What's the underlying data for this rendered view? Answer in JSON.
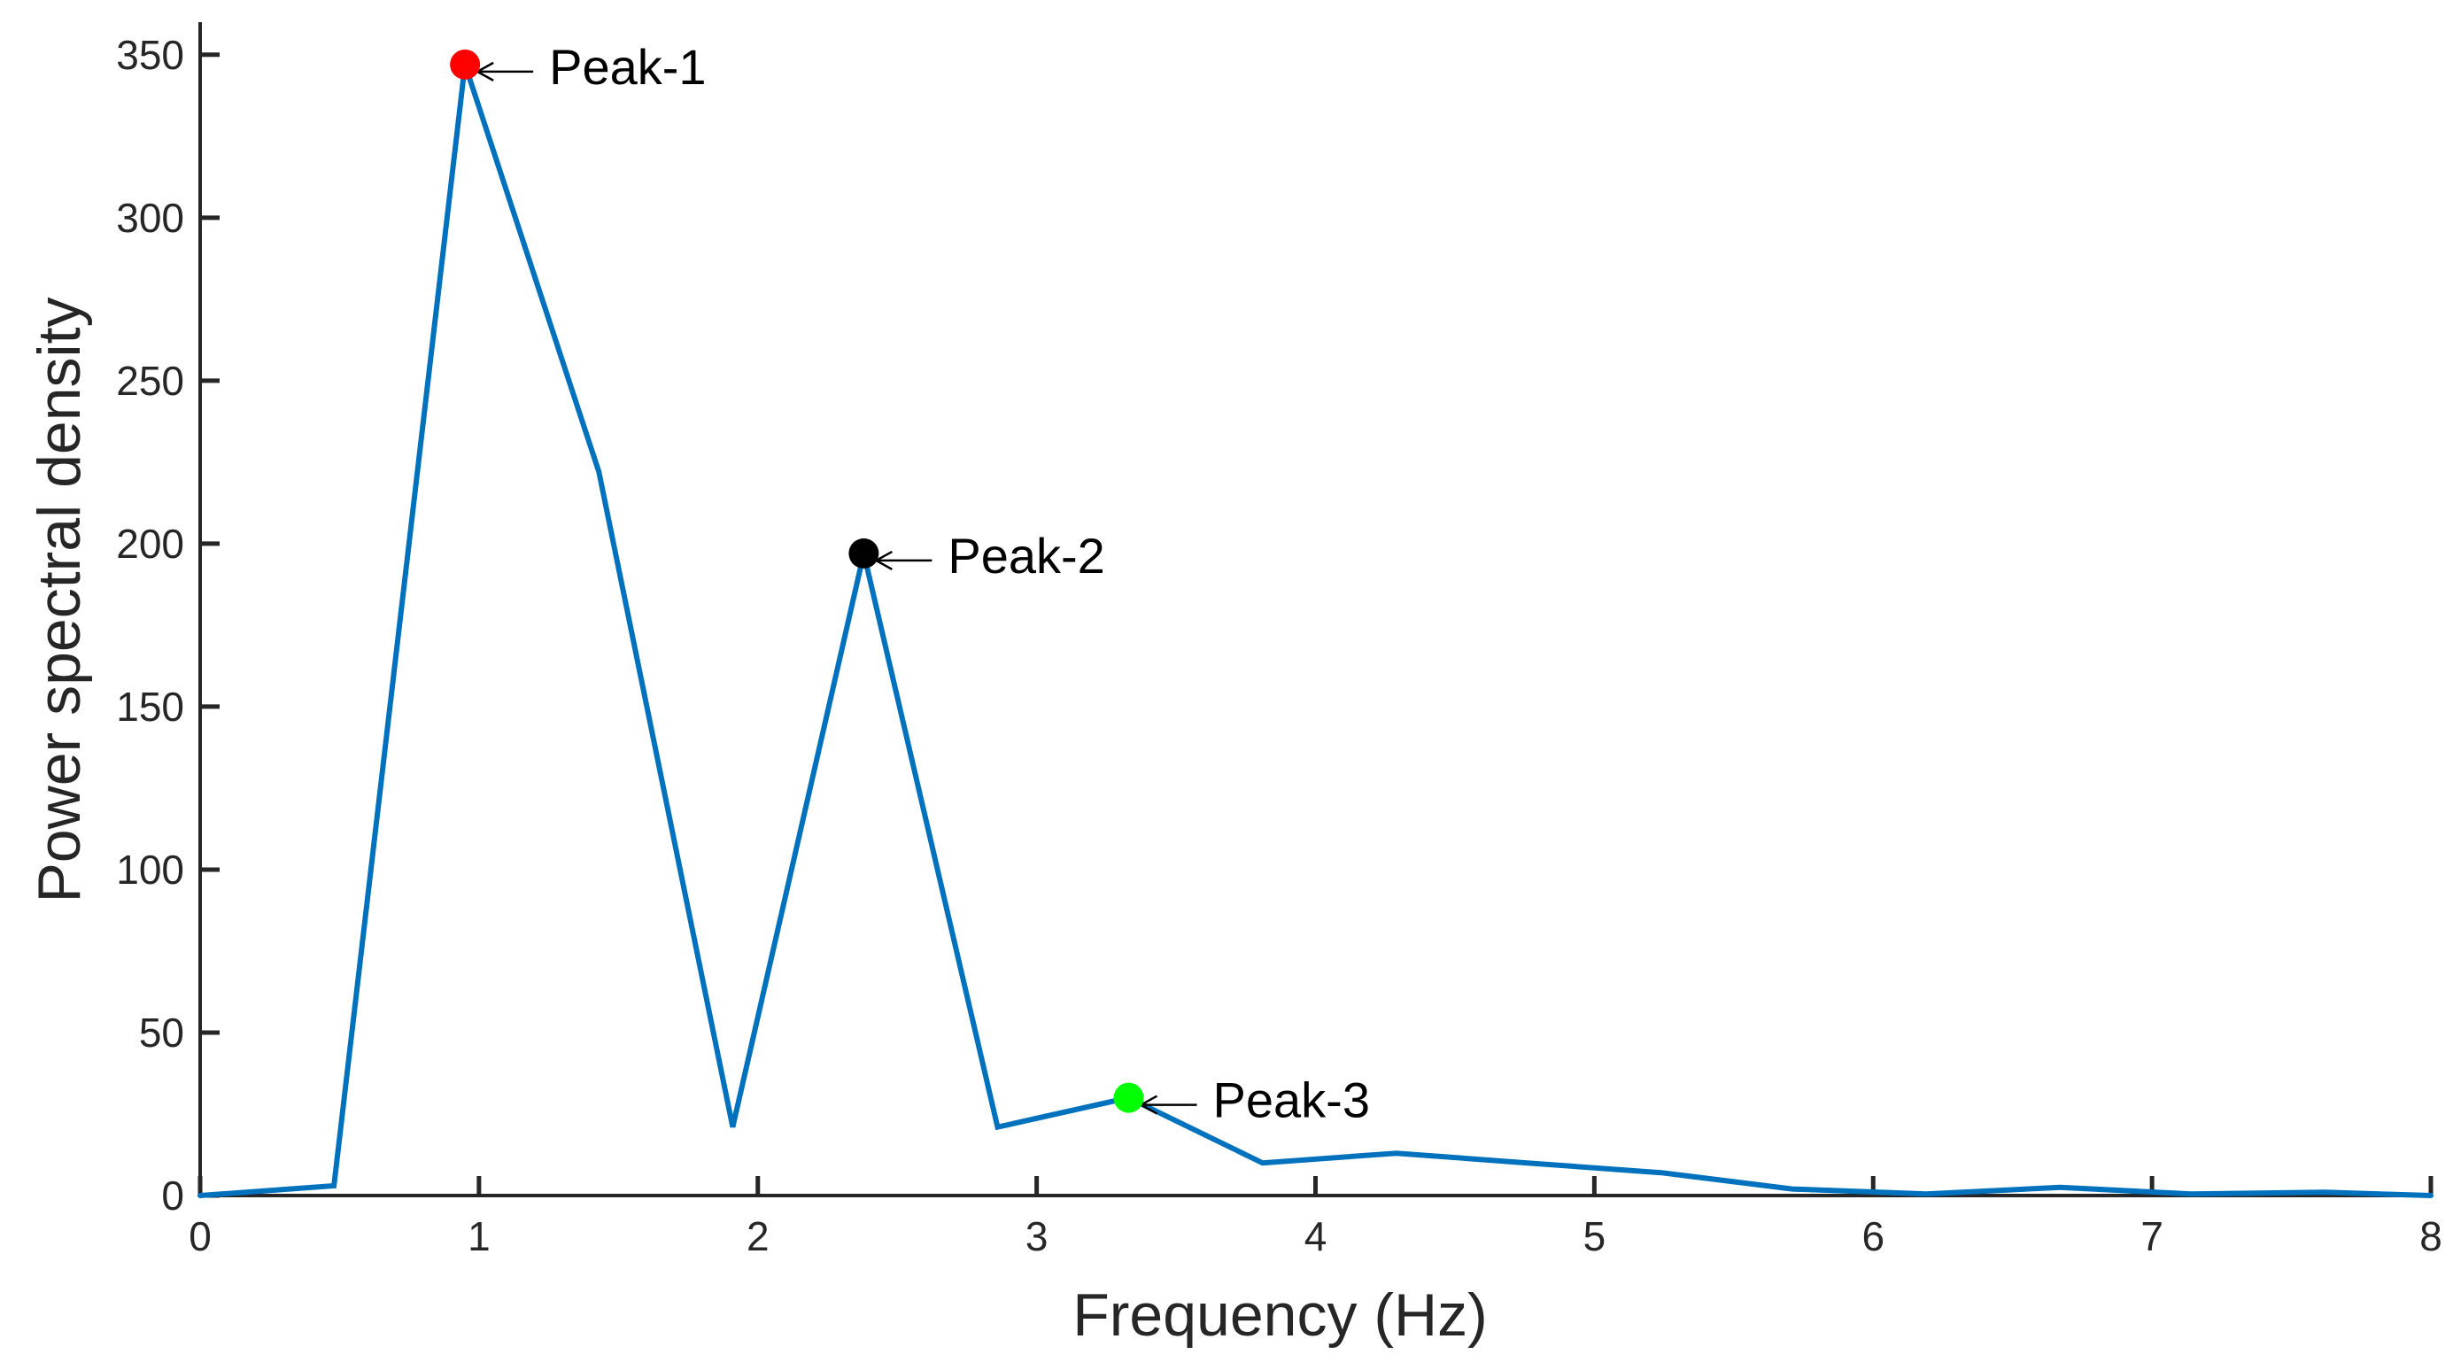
{
  "chart_data": {
    "type": "line",
    "title": "",
    "xlabel": "Frequency (Hz)",
    "ylabel": "Power spectral density",
    "xlim": [
      0,
      8
    ],
    "ylim": [
      0,
      360
    ],
    "x_ticks": [
      0,
      1,
      2,
      3,
      4,
      5,
      6,
      7,
      8
    ],
    "y_ticks": [
      0,
      50,
      100,
      150,
      200,
      250,
      300,
      350
    ],
    "grid": false,
    "legend": "none",
    "series": [
      {
        "color": "#0072BD",
        "points": [
          [
            0,
            0
          ],
          [
            0.48,
            3
          ],
          [
            0.95,
            347
          ],
          [
            1.43,
            222
          ],
          [
            1.91,
            21
          ],
          [
            2.38,
            197
          ],
          [
            2.86,
            21
          ],
          [
            3.33,
            30
          ],
          [
            3.81,
            10
          ],
          [
            4.29,
            13
          ],
          [
            4.76,
            10
          ],
          [
            5.24,
            7
          ],
          [
            5.71,
            2
          ],
          [
            6.19,
            0.5
          ],
          [
            6.67,
            2.5
          ],
          [
            7.14,
            0.5
          ],
          [
            7.62,
            1
          ],
          [
            8,
            0
          ]
        ]
      }
    ],
    "annotations": [
      {
        "text": "Peak-1",
        "x": 0.95,
        "y": 347,
        "marker_color": "#ff0000"
      },
      {
        "text": "Peak-2",
        "x": 2.38,
        "y": 197,
        "marker_color": "#000000"
      },
      {
        "text": "Peak-3",
        "x": 3.33,
        "y": 30,
        "marker_color": "#00ff00"
      }
    ]
  }
}
